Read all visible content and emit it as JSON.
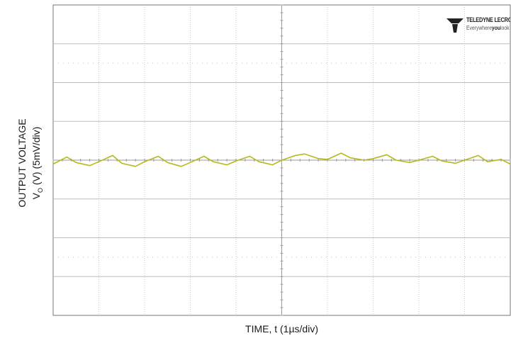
{
  "chart_data": {
    "type": "line",
    "title": "",
    "xlabel": "TIME, t (1µs/div)",
    "ylabel": "OUTPUT VOLTAGE",
    "ylabel_line2": "VO (V) (5mV/div)",
    "x_divisions": 10,
    "y_divisions": 8,
    "grid": true,
    "x_unit": "µs",
    "y_unit": "mV",
    "xlim": [
      0,
      10
    ],
    "ylim": [
      -20,
      20
    ],
    "trace_color": "#b8b81a",
    "series": [
      {
        "x": [
          0.0,
          0.3,
          0.5,
          0.8,
          1.0,
          1.3,
          1.5,
          1.8,
          2.0,
          2.3,
          2.5,
          2.8,
          3.0,
          3.3,
          3.5,
          3.8,
          4.0,
          4.3,
          4.5,
          4.8,
          5.0,
          5.3,
          5.5,
          5.8,
          6.0,
          6.3,
          6.5,
          6.8,
          7.0,
          7.3,
          7.5,
          7.8,
          8.0,
          8.3,
          8.5,
          8.8,
          9.0,
          9.3,
          9.5,
          9.8,
          10.0
        ],
        "values": [
          -0.5,
          0.4,
          -0.3,
          -0.7,
          -0.2,
          0.6,
          -0.4,
          -0.8,
          -0.2,
          0.5,
          -0.3,
          -0.8,
          -0.3,
          0.5,
          -0.2,
          -0.6,
          -0.1,
          0.5,
          -0.2,
          -0.6,
          0.0,
          0.6,
          0.8,
          0.2,
          0.1,
          0.9,
          0.3,
          0.0,
          0.2,
          0.7,
          0.0,
          -0.3,
          0.0,
          0.5,
          -0.1,
          -0.4,
          0.0,
          0.6,
          -0.2,
          0.1,
          -0.5
        ]
      }
    ]
  },
  "logo": {
    "brand": "TELEDYNE LECROY",
    "tagline_prefix": "Everywhere",
    "tagline_bold": "you",
    "tagline_suffix": "look"
  }
}
